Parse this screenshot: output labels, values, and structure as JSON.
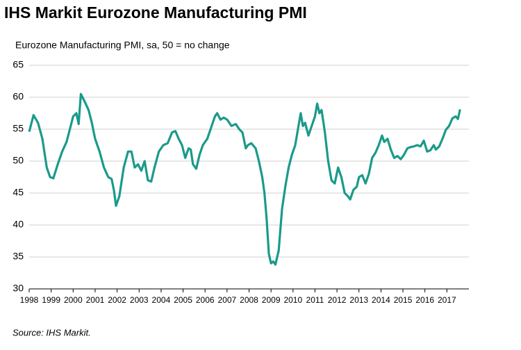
{
  "chart_data": {
    "type": "line",
    "title": "IHS Markit Eurozone Manufacturing PMI",
    "subtitle": "Eurozone Manufacturing PMI, sa, 50 = no change",
    "source": "Source: IHS Markit.",
    "xlim": [
      1998,
      2018
    ],
    "xticks": [
      1998,
      1999,
      2000,
      2001,
      2002,
      2003,
      2004,
      2005,
      2006,
      2007,
      2008,
      2009,
      2010,
      2011,
      2012,
      2013,
      2014,
      2015,
      2016,
      2017
    ],
    "ylim": [
      30,
      65
    ],
    "yticks": [
      30,
      35,
      40,
      45,
      50,
      55,
      60,
      65
    ],
    "grid": true,
    "series": [
      {
        "name": "Eurozone Manufacturing PMI",
        "color": "#1a9a8a",
        "x": [
          1998.0,
          1998.2,
          1998.4,
          1998.6,
          1998.8,
          1998.95,
          1999.1,
          1999.3,
          1999.5,
          1999.7,
          1999.85,
          2000.0,
          2000.15,
          2000.25,
          2000.35,
          2000.5,
          2000.7,
          2000.85,
          2001.0,
          2001.2,
          2001.4,
          2001.6,
          2001.75,
          2001.85,
          2001.95,
          2002.1,
          2002.3,
          2002.5,
          2002.65,
          2002.8,
          2002.95,
          2003.1,
          2003.25,
          2003.4,
          2003.55,
          2003.7,
          2003.9,
          2004.1,
          2004.3,
          2004.5,
          2004.65,
          2004.8,
          2004.95,
          2005.1,
          2005.25,
          2005.35,
          2005.45,
          2005.6,
          2005.75,
          2005.9,
          2006.1,
          2006.3,
          2006.45,
          2006.55,
          2006.7,
          2006.85,
          2007.0,
          2007.2,
          2007.4,
          2007.55,
          2007.7,
          2007.85,
          2007.95,
          2008.1,
          2008.3,
          2008.45,
          2008.6,
          2008.7,
          2008.8,
          2008.9,
          2009.0,
          2009.1,
          2009.2,
          2009.35,
          2009.5,
          2009.65,
          2009.8,
          2009.95,
          2010.1,
          2010.25,
          2010.35,
          2010.45,
          2010.55,
          2010.7,
          2010.85,
          2011.0,
          2011.1,
          2011.2,
          2011.3,
          2011.45,
          2011.6,
          2011.75,
          2011.9,
          2012.05,
          2012.2,
          2012.35,
          2012.5,
          2012.6,
          2012.75,
          2012.9,
          2013.0,
          2013.15,
          2013.3,
          2013.45,
          2013.6,
          2013.75,
          2013.9,
          2014.05,
          2014.15,
          2014.3,
          2014.45,
          2014.6,
          2014.75,
          2014.9,
          2015.05,
          2015.2,
          2015.35,
          2015.5,
          2015.65,
          2015.8,
          2015.95,
          2016.1,
          2016.25,
          2016.4,
          2016.5,
          2016.65,
          2016.8,
          2016.95,
          2017.1,
          2017.25,
          2017.4,
          2017.5,
          2017.6
        ],
        "values": [
          54.6,
          57.2,
          56,
          53.5,
          49,
          47.5,
          47.3,
          49.5,
          51.5,
          53,
          55,
          57,
          57.5,
          55.8,
          60.5,
          59.5,
          58,
          56,
          53.5,
          51.5,
          49,
          47.5,
          47.2,
          45.5,
          43,
          44.5,
          49,
          51.5,
          51.5,
          49,
          49.5,
          48.5,
          50,
          47,
          46.8,
          49,
          51.5,
          52.5,
          52.8,
          54.5,
          54.7,
          53.5,
          52.5,
          50.5,
          52,
          51.8,
          49.5,
          48.8,
          51,
          52.5,
          53.5,
          55.5,
          57,
          57.5,
          56.5,
          56.8,
          56.5,
          55.5,
          55.8,
          55,
          54.5,
          52,
          52.5,
          52.8,
          52,
          50,
          47.5,
          45,
          41,
          35.5,
          34,
          34.3,
          33.8,
          36,
          42.5,
          46,
          49,
          51,
          52.5,
          55.5,
          57.5,
          55.5,
          56,
          54,
          55.5,
          57,
          59,
          57.5,
          58,
          54.5,
          50,
          47,
          46.5,
          49,
          47.5,
          45,
          44.5,
          44,
          45.5,
          46,
          47.5,
          47.8,
          46.5,
          48,
          50.5,
          51.3,
          52.5,
          54,
          53,
          53.5,
          51.8,
          50.5,
          50.8,
          50.3,
          51,
          52,
          52.2,
          52.3,
          52.5,
          52.3,
          53.2,
          51.5,
          51.7,
          52.5,
          51.8,
          52.3,
          53.5,
          54.9,
          55.5,
          56.7,
          57,
          56.6,
          58.1
        ]
      }
    ]
  }
}
